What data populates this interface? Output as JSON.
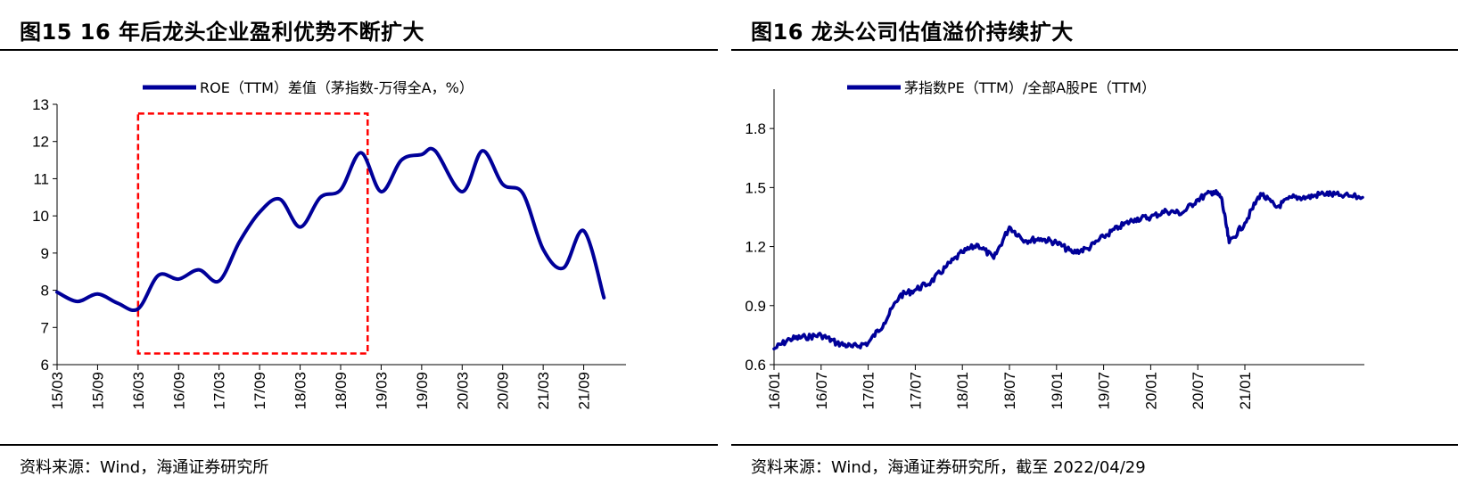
{
  "charts": [
    {
      "title": "图15 16 年后龙头企业盈利优势不断扩大",
      "source": "资料来源：Wind，海通证券研究所"
    },
    {
      "title": "图16 龙头公司估值溢价持续扩大",
      "source": "资料来源：Wind，海通证券研究所，截至 2022/04/29"
    }
  ],
  "colors": {
    "series": "#000099",
    "highlight_box": "#ff0000"
  },
  "chart_data": [
    {
      "type": "line",
      "legend_position": "top",
      "grid": false,
      "ylim": [
        6,
        13
      ],
      "yticks": [
        6,
        7,
        8,
        9,
        10,
        11,
        12,
        13
      ],
      "xlim": [
        "15/03",
        "22/03"
      ],
      "xtick_labels": [
        "15/03",
        "15/09",
        "16/03",
        "16/09",
        "17/03",
        "17/09",
        "18/03",
        "18/09",
        "19/03",
        "19/09",
        "20/03",
        "20/09",
        "21/03",
        "21/09"
      ],
      "series": [
        {
          "name": "ROE（TTM）差值（茅指数-万得全A，%）",
          "x": [
            "15/03",
            "15/06",
            "15/09",
            "15/12",
            "16/03",
            "16/06",
            "16/09",
            "16/12",
            "17/03",
            "17/06",
            "17/09",
            "17/12",
            "18/03",
            "18/06",
            "18/09",
            "18/12",
            "19/03",
            "19/06",
            "19/09",
            "19/11",
            "20/03",
            "20/06",
            "20/09",
            "20/12",
            "21/03",
            "21/06",
            "21/09",
            "21/12"
          ],
          "values": [
            7.95,
            7.7,
            7.9,
            7.65,
            7.5,
            8.4,
            8.3,
            8.55,
            8.25,
            9.3,
            10.1,
            10.45,
            9.7,
            10.5,
            10.7,
            11.7,
            10.65,
            11.5,
            11.65,
            11.75,
            10.65,
            11.75,
            10.85,
            10.6,
            9.1,
            8.6,
            9.6,
            7.8
          ]
        }
      ],
      "annotations": [
        {
          "type": "dashed-box",
          "x_range": [
            "16/03",
            "19/01"
          ],
          "y_range": [
            6.3,
            12.75
          ]
        }
      ]
    },
    {
      "type": "line",
      "legend_position": "top",
      "grid": false,
      "ylim": [
        0.6,
        2.0
      ],
      "yticks": [
        0.6,
        0.9,
        1.2,
        1.5,
        1.8
      ],
      "xlim": [
        "16/01",
        "22/04"
      ],
      "xtick_labels": [
        "16/01",
        "16/07",
        "17/01",
        "17/07",
        "18/01",
        "18/07",
        "19/01",
        "19/07",
        "20/01",
        "20/07",
        "21/01"
      ],
      "series": [
        {
          "name": "茅指数PE（TTM）/全部A股PE（TTM）",
          "x": [
            "16/01",
            "16/03",
            "16/05",
            "16/07",
            "16/09",
            "16/11",
            "17/01",
            "17/03",
            "17/05",
            "17/07",
            "17/09",
            "17/11",
            "18/01",
            "18/03",
            "18/05",
            "18/07",
            "18/09",
            "18/11",
            "19/01",
            "19/03",
            "19/05",
            "19/07",
            "19/09",
            "19/11",
            "20/01",
            "20/03",
            "20/05",
            "20/07",
            "20/09",
            "20/10",
            "20/11",
            "21/01",
            "21/03",
            "21/05",
            "21/07",
            "21/09",
            "21/11",
            "22/01",
            "22/04"
          ],
          "values": [
            0.68,
            0.73,
            0.74,
            0.75,
            0.71,
            0.69,
            0.71,
            0.81,
            0.95,
            0.98,
            1.02,
            1.1,
            1.17,
            1.21,
            1.14,
            1.3,
            1.23,
            1.24,
            1.22,
            1.17,
            1.19,
            1.25,
            1.3,
            1.34,
            1.35,
            1.38,
            1.37,
            1.44,
            1.48,
            1.45,
            1.22,
            1.32,
            1.47,
            1.4,
            1.45,
            1.45,
            1.47,
            1.46,
            1.45
          ]
        }
      ]
    }
  ]
}
